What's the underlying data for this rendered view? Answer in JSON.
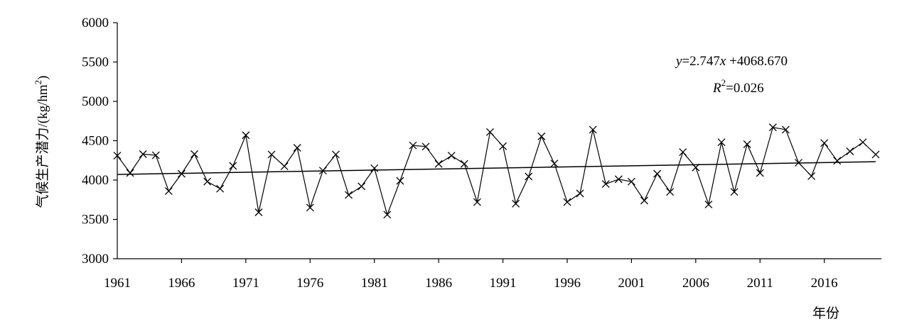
{
  "chart_data": {
    "type": "line",
    "title": "",
    "xlabel": "年份",
    "ylabel": "气候生产潜力/(kg/hm²)",
    "ylabel_main": "气候生产潜力/(kg/hm",
    "ylabel_sup": "2",
    "ylabel_end": ")",
    "xlim": [
      1961,
      2020
    ],
    "ylim": [
      3000,
      6000
    ],
    "x_ticks": [
      1961,
      1966,
      1971,
      1976,
      1981,
      1986,
      1991,
      1996,
      2001,
      2006,
      2011,
      2016
    ],
    "y_ticks": [
      3000,
      3500,
      4000,
      4500,
      5000,
      5500,
      6000
    ],
    "grid": false,
    "marker": "x",
    "series": [
      {
        "x": [
          1961,
          1962,
          1963,
          1964,
          1965,
          1966,
          1967,
          1968,
          1969,
          1970,
          1971,
          1972,
          1973,
          1974,
          1975,
          1976,
          1977,
          1978,
          1979,
          1980,
          1981,
          1982,
          1983,
          1984,
          1985,
          1986,
          1987,
          1988,
          1989,
          1990,
          1991,
          1992,
          1993,
          1994,
          1995,
          1996,
          1997,
          1998,
          1999,
          2000,
          2001,
          2002,
          2003,
          2004,
          2005,
          2006,
          2007,
          2008,
          2009,
          2010,
          2011,
          2012,
          2013,
          2014,
          2015,
          2016,
          2017,
          2018,
          2019,
          2020
        ],
        "values": [
          4310,
          4090,
          4330,
          4315,
          3860,
          4080,
          4330,
          3980,
          3890,
          4180,
          4570,
          3590,
          4325,
          4175,
          4410,
          3650,
          4120,
          4325,
          3810,
          3920,
          4150,
          3560,
          3990,
          4440,
          4425,
          4205,
          4310,
          4205,
          3720,
          4610,
          4430,
          3700,
          4045,
          4555,
          4210,
          3720,
          3830,
          4640,
          3950,
          4010,
          3980,
          3740,
          4080,
          3850,
          4355,
          4160,
          3690,
          4480,
          3850,
          4455,
          4090,
          4670,
          4640,
          4220,
          4050,
          4470,
          4245,
          4365,
          4480,
          4325
        ]
      }
    ],
    "trendline": {
      "slope": 2.747,
      "intercept": 4068.67
    },
    "annotation": {
      "eq_y": "y",
      "eq_eq": "=2.747",
      "eq_x": "x",
      "eq_rest": " +4068.670",
      "r2_label": "R",
      "r2_sup": "2",
      "r2_value": "=0.026"
    }
  }
}
